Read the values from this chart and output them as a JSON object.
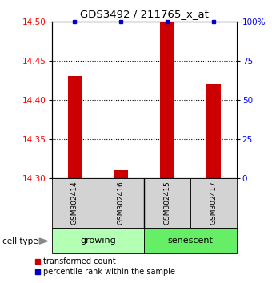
{
  "title": "GDS3492 / 211765_x_at",
  "samples": [
    "GSM302414",
    "GSM302416",
    "GSM302415",
    "GSM302417"
  ],
  "groups": [
    "growing",
    "growing",
    "senescent",
    "senescent"
  ],
  "transformed_counts": [
    14.43,
    14.31,
    14.5,
    14.42
  ],
  "ylim": [
    14.3,
    14.5
  ],
  "yticks_left": [
    14.3,
    14.35,
    14.4,
    14.45,
    14.5
  ],
  "yticks_right": [
    0,
    25,
    50,
    75,
    100
  ],
  "bar_color": "#CC0000",
  "dot_color": "#0000CC",
  "group_label": "cell type",
  "legend_bar": "transformed count",
  "legend_dot": "percentile rank within the sample",
  "growing_bg": "#b3ffb3",
  "senescent_bg": "#66ee66",
  "sample_box_bg": "#d3d3d3",
  "grid_ticks": [
    14.45,
    14.4,
    14.35
  ]
}
